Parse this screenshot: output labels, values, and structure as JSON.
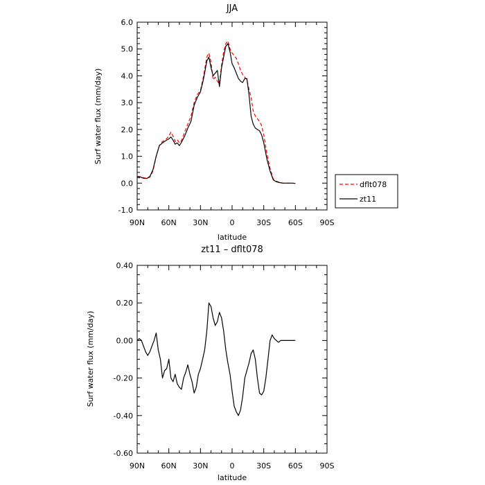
{
  "chart_data": [
    {
      "type": "line",
      "title": "JJA",
      "xlabel": "latitude",
      "ylabel": "Surf water flux (mm/day)",
      "x_ticks": [
        {
          "v": 90,
          "label": "90N"
        },
        {
          "v": 60,
          "label": "60N"
        },
        {
          "v": 30,
          "label": "30N"
        },
        {
          "v": 0,
          "label": "0"
        },
        {
          "v": -30,
          "label": "30S"
        },
        {
          "v": -60,
          "label": "60S"
        },
        {
          "v": -90,
          "label": "90S"
        }
      ],
      "xlim": [
        90,
        -90
      ],
      "ylim": [
        -1.0,
        6.0
      ],
      "y_ticks": [
        {
          "v": -1.0,
          "label": "-1.0"
        },
        {
          "v": 0.0,
          "label": "0.0"
        },
        {
          "v": 1.0,
          "label": "1.0"
        },
        {
          "v": 2.0,
          "label": "2.0"
        },
        {
          "v": 3.0,
          "label": "3.0"
        },
        {
          "v": 4.0,
          "label": "4.0"
        },
        {
          "v": 5.0,
          "label": "5.0"
        },
        {
          "v": 6.0,
          "label": "6.0"
        }
      ],
      "legend": {
        "placement": "right"
      },
      "series": [
        {
          "name": "dflt078",
          "color": "#ff0000",
          "dash": "dashed",
          "points": [
            [
              90,
              0.25
            ],
            [
              87,
              0.24
            ],
            [
              84,
              0.2
            ],
            [
              81,
              0.18
            ],
            [
              78,
              0.22
            ],
            [
              75,
              0.45
            ],
            [
              72,
              1.0
            ],
            [
              69,
              1.4
            ],
            [
              66,
              1.55
            ],
            [
              63,
              1.62
            ],
            [
              60,
              1.75
            ],
            [
              58,
              1.9
            ],
            [
              56,
              1.75
            ],
            [
              54,
              1.55
            ],
            [
              52,
              1.62
            ],
            [
              50,
              1.5
            ],
            [
              48,
              1.58
            ],
            [
              45,
              1.9
            ],
            [
              42,
              2.2
            ],
            [
              39,
              2.5
            ],
            [
              36,
              3.0
            ],
            [
              33,
              3.3
            ],
            [
              30,
              3.45
            ],
            [
              27,
              4.0
            ],
            [
              24,
              4.7
            ],
            [
              22,
              4.85
            ],
            [
              20,
              4.5
            ],
            [
              18,
              3.85
            ],
            [
              16,
              3.95
            ],
            [
              14,
              3.8
            ],
            [
              12,
              3.7
            ],
            [
              10,
              4.4
            ],
            [
              8,
              4.9
            ],
            [
              6,
              5.2
            ],
            [
              4,
              5.3
            ],
            [
              2,
              5.0
            ],
            [
              0,
              4.85
            ],
            [
              -2,
              4.75
            ],
            [
              -4,
              4.65
            ],
            [
              -6,
              4.45
            ],
            [
              -8,
              4.2
            ],
            [
              -10,
              4.05
            ],
            [
              -12,
              3.95
            ],
            [
              -14,
              3.85
            ],
            [
              -16,
              3.5
            ],
            [
              -18,
              3.2
            ],
            [
              -20,
              2.7
            ],
            [
              -22,
              2.5
            ],
            [
              -24,
              2.4
            ],
            [
              -26,
              2.3
            ],
            [
              -28,
              2.15
            ],
            [
              -30,
              1.8
            ],
            [
              -33,
              1.1
            ],
            [
              -36,
              0.55
            ],
            [
              -39,
              0.15
            ],
            [
              -42,
              0.07
            ],
            [
              -45,
              0.03
            ],
            [
              -48,
              0.0
            ],
            [
              -51,
              0.0
            ],
            [
              -54,
              0.0
            ],
            [
              -57,
              0.0
            ],
            [
              -60,
              -0.01
            ]
          ]
        },
        {
          "name": "zt11",
          "color": "#000000",
          "dash": "solid",
          "points": [
            [
              90,
              0.25
            ],
            [
              87,
              0.23
            ],
            [
              84,
              0.18
            ],
            [
              81,
              0.17
            ],
            [
              78,
              0.25
            ],
            [
              75,
              0.5
            ],
            [
              72,
              1.0
            ],
            [
              69,
              1.4
            ],
            [
              66,
              1.5
            ],
            [
              63,
              1.58
            ],
            [
              60,
              1.65
            ],
            [
              58,
              1.72
            ],
            [
              56,
              1.6
            ],
            [
              54,
              1.45
            ],
            [
              52,
              1.5
            ],
            [
              50,
              1.4
            ],
            [
              48,
              1.52
            ],
            [
              45,
              1.75
            ],
            [
              42,
              2.05
            ],
            [
              39,
              2.3
            ],
            [
              36,
              2.9
            ],
            [
              33,
              3.2
            ],
            [
              30,
              3.4
            ],
            [
              27,
              3.9
            ],
            [
              24,
              4.55
            ],
            [
              22,
              4.7
            ],
            [
              20,
              4.3
            ],
            [
              18,
              4.0
            ],
            [
              16,
              4.1
            ],
            [
              14,
              4.2
            ],
            [
              12,
              3.6
            ],
            [
              10,
              4.3
            ],
            [
              8,
              4.7
            ],
            [
              6,
              5.1
            ],
            [
              4,
              5.2
            ],
            [
              2,
              4.9
            ],
            [
              0,
              4.45
            ],
            [
              -2,
              4.3
            ],
            [
              -4,
              4.1
            ],
            [
              -6,
              3.9
            ],
            [
              -8,
              3.8
            ],
            [
              -10,
              3.75
            ],
            [
              -12,
              3.9
            ],
            [
              -14,
              3.9
            ],
            [
              -16,
              3.3
            ],
            [
              -18,
              2.5
            ],
            [
              -20,
              2.2
            ],
            [
              -22,
              2.05
            ],
            [
              -24,
              2.0
            ],
            [
              -26,
              1.95
            ],
            [
              -28,
              1.8
            ],
            [
              -30,
              1.5
            ],
            [
              -33,
              0.9
            ],
            [
              -36,
              0.45
            ],
            [
              -39,
              0.12
            ],
            [
              -42,
              0.05
            ],
            [
              -45,
              0.02
            ],
            [
              -48,
              0.0
            ],
            [
              -51,
              0.0
            ],
            [
              -54,
              0.0
            ],
            [
              -57,
              0.0
            ],
            [
              -60,
              -0.01
            ]
          ]
        }
      ]
    },
    {
      "type": "line",
      "title": "zt11 – dflt078",
      "xlabel": "latitude",
      "ylabel": "Surf water flux (mm/day)",
      "x_ticks": [
        {
          "v": 90,
          "label": "90N"
        },
        {
          "v": 60,
          "label": "60N"
        },
        {
          "v": 30,
          "label": "30N"
        },
        {
          "v": 0,
          "label": "0"
        },
        {
          "v": -30,
          "label": "30S"
        },
        {
          "v": -60,
          "label": "60S"
        },
        {
          "v": -90,
          "label": "90S"
        }
      ],
      "xlim": [
        90,
        -90
      ],
      "ylim": [
        -0.6,
        0.4
      ],
      "y_ticks": [
        {
          "v": -0.6,
          "label": "-0.60"
        },
        {
          "v": -0.4,
          "label": "-0.40"
        },
        {
          "v": -0.2,
          "label": "-0.20"
        },
        {
          "v": 0.0,
          "label": "0.00"
        },
        {
          "v": 0.2,
          "label": "0.20"
        },
        {
          "v": 0.4,
          "label": "0.40"
        }
      ],
      "series": [
        {
          "color": "#000000",
          "dash": "solid",
          "points": [
            [
              90,
              0.0
            ],
            [
              88,
              0.01
            ],
            [
              86,
              0.0
            ],
            [
              84,
              -0.03
            ],
            [
              82,
              -0.06
            ],
            [
              80,
              -0.08
            ],
            [
              78,
              -0.06
            ],
            [
              76,
              -0.03
            ],
            [
              74,
              0.0
            ],
            [
              72,
              0.04
            ],
            [
              70,
              -0.05
            ],
            [
              68,
              -0.1
            ],
            [
              66,
              -0.2
            ],
            [
              64,
              -0.16
            ],
            [
              62,
              -0.15
            ],
            [
              60,
              -0.1
            ],
            [
              58,
              -0.2
            ],
            [
              56,
              -0.22
            ],
            [
              54,
              -0.18
            ],
            [
              52,
              -0.23
            ],
            [
              50,
              -0.25
            ],
            [
              48,
              -0.26
            ],
            [
              46,
              -0.2
            ],
            [
              44,
              -0.17
            ],
            [
              42,
              -0.13
            ],
            [
              40,
              -0.18
            ],
            [
              38,
              -0.22
            ],
            [
              36,
              -0.28
            ],
            [
              34,
              -0.25
            ],
            [
              32,
              -0.18
            ],
            [
              30,
              -0.15
            ],
            [
              28,
              -0.1
            ],
            [
              26,
              -0.05
            ],
            [
              24,
              0.05
            ],
            [
              22,
              0.2
            ],
            [
              20,
              0.18
            ],
            [
              18,
              0.12
            ],
            [
              16,
              0.08
            ],
            [
              14,
              0.1
            ],
            [
              12,
              0.15
            ],
            [
              10,
              0.12
            ],
            [
              8,
              0.05
            ],
            [
              6,
              -0.05
            ],
            [
              4,
              -0.12
            ],
            [
              2,
              -0.18
            ],
            [
              0,
              -0.27
            ],
            [
              -2,
              -0.35
            ],
            [
              -4,
              -0.38
            ],
            [
              -6,
              -0.4
            ],
            [
              -8,
              -0.37
            ],
            [
              -10,
              -0.3
            ],
            [
              -12,
              -0.2
            ],
            [
              -14,
              -0.16
            ],
            [
              -16,
              -0.12
            ],
            [
              -18,
              -0.07
            ],
            [
              -20,
              -0.05
            ],
            [
              -22,
              -0.1
            ],
            [
              -24,
              -0.2
            ],
            [
              -26,
              -0.28
            ],
            [
              -28,
              -0.29
            ],
            [
              -30,
              -0.27
            ],
            [
              -32,
              -0.2
            ],
            [
              -34,
              -0.1
            ],
            [
              -36,
              0.0
            ],
            [
              -38,
              0.03
            ],
            [
              -40,
              0.01
            ],
            [
              -42,
              0.0
            ],
            [
              -44,
              -0.01
            ],
            [
              -46,
              0.0
            ],
            [
              -48,
              0.0
            ],
            [
              -50,
              0.0
            ],
            [
              -52,
              0.0
            ],
            [
              -54,
              0.0
            ],
            [
              -56,
              0.0
            ],
            [
              -58,
              0.0
            ],
            [
              -60,
              0.0
            ]
          ]
        }
      ]
    }
  ]
}
